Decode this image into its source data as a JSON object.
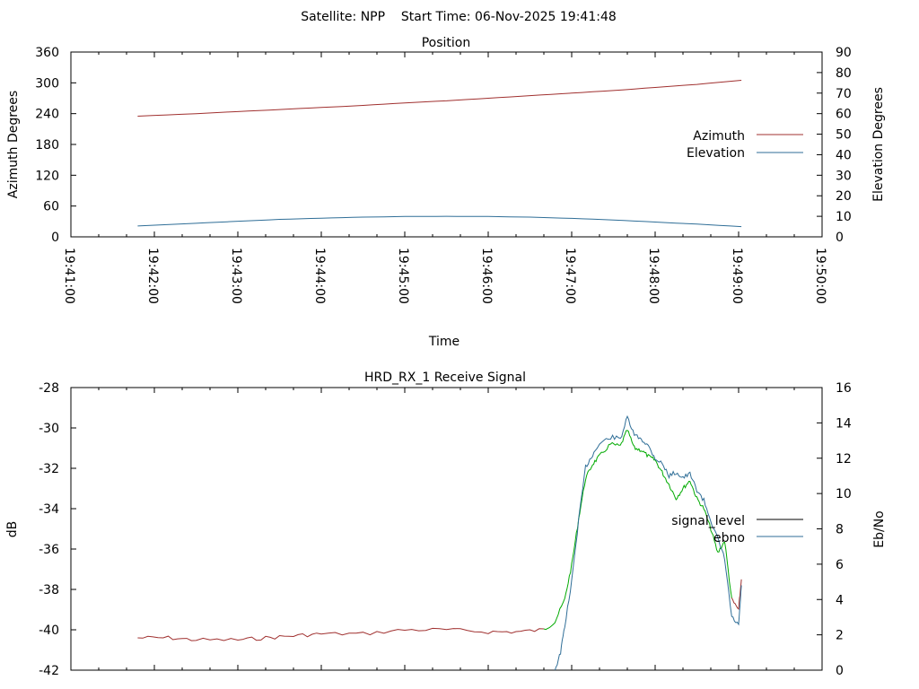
{
  "header": {
    "title": "Satellite: NPP    Start Time: 06-Nov-2025 19:41:48"
  },
  "chart_data": [
    {
      "type": "line",
      "title": "Position",
      "xlabel": "Time",
      "ylabel": "Azimuth Degrees",
      "y2label": "Elevation Degrees",
      "xlim": [
        "19:41:00",
        "19:50:00"
      ],
      "ylim": [
        0,
        360
      ],
      "y2lim": [
        0,
        90
      ],
      "x_ticks": [
        "19:41:00",
        "19:42:00",
        "19:43:00",
        "19:44:00",
        "19:45:00",
        "19:46:00",
        "19:47:00",
        "19:48:00",
        "19:49:00",
        "19:50:00"
      ],
      "y_ticks": [
        0,
        60,
        120,
        180,
        240,
        300,
        360
      ],
      "y2_ticks": [
        0,
        10,
        20,
        30,
        40,
        50,
        60,
        70,
        80,
        90
      ],
      "legend_position": "right",
      "grid": false,
      "series": [
        {
          "name": "Azimuth",
          "axis": "y",
          "color": "#a0302f",
          "x": [
            "19:41:48",
            "19:42:30",
            "19:43:00",
            "19:43:30",
            "19:44:00",
            "19:44:30",
            "19:45:00",
            "19:45:30",
            "19:46:00",
            "19:46:30",
            "19:47:00",
            "19:47:30",
            "19:48:00",
            "19:48:30",
            "19:49:02"
          ],
          "values": [
            235,
            240,
            244,
            248,
            252,
            256,
            261,
            265,
            270,
            275,
            280,
            285,
            291,
            297,
            305
          ]
        },
        {
          "name": "Elevation",
          "axis": "y2",
          "color": "#2f6e97",
          "x": [
            "19:41:48",
            "19:42:30",
            "19:43:00",
            "19:43:30",
            "19:44:00",
            "19:44:30",
            "19:45:00",
            "19:45:30",
            "19:46:00",
            "19:46:30",
            "19:47:00",
            "19:47:30",
            "19:48:00",
            "19:48:30",
            "19:49:02"
          ],
          "values": [
            5.3,
            6.6,
            7.6,
            8.5,
            9.1,
            9.6,
            9.9,
            10.0,
            9.9,
            9.6,
            9.0,
            8.2,
            7.2,
            6.2,
            5.0
          ]
        }
      ]
    },
    {
      "type": "line",
      "title": "HRD_RX_1 Receive Signal",
      "ylabel": "dB",
      "y2label": "Eb/No",
      "xlim": [
        "19:41:00",
        "19:50:00"
      ],
      "ylim": [
        -42,
        -28
      ],
      "y2lim": [
        0,
        16
      ],
      "y_ticks": [
        -42,
        -40,
        -38,
        -36,
        -34,
        -32,
        -30,
        -28
      ],
      "y2_ticks": [
        0,
        2,
        4,
        6,
        8,
        10,
        12,
        14,
        16
      ],
      "legend_position": "right",
      "grid": false,
      "series": [
        {
          "name": "signal_level",
          "axis": "y",
          "colors": [
            "#a0302f",
            "#00aa00",
            "#a0302f"
          ],
          "x": [
            "19:41:48",
            "19:42:10",
            "19:42:30",
            "19:43:00",
            "19:43:20",
            "19:43:40",
            "19:44:00",
            "19:44:30",
            "19:45:00",
            "19:45:30",
            "19:46:00",
            "19:46:20",
            "19:46:40",
            "19:46:48",
            "19:46:55",
            "19:47:00",
            "19:47:05",
            "19:47:10",
            "19:47:15",
            "19:47:20",
            "19:47:28",
            "19:47:35",
            "19:47:40",
            "19:47:45",
            "19:47:50",
            "19:47:55",
            "19:48:00",
            "19:48:05",
            "19:48:10",
            "19:48:15",
            "19:48:20",
            "19:48:25",
            "19:48:30",
            "19:48:35",
            "19:48:40",
            "19:48:45",
            "19:48:50",
            "19:48:55",
            "19:49:00",
            "19:49:02"
          ],
          "values": [
            -40.4,
            -40.4,
            -40.5,
            -40.5,
            -40.4,
            -40.3,
            -40.2,
            -40.2,
            -40.0,
            -40.0,
            -40.1,
            -40.1,
            -40.0,
            -39.6,
            -38.5,
            -36.8,
            -34.5,
            -32.5,
            -31.8,
            -31.4,
            -30.8,
            -30.9,
            -30.1,
            -31.0,
            -31.1,
            -31.4,
            -31.6,
            -32.2,
            -32.8,
            -33.5,
            -33.0,
            -32.6,
            -33.5,
            -34.0,
            -35.0,
            -36.2,
            -35.6,
            -38.5,
            -39.0,
            -37.5
          ]
        },
        {
          "name": "ebno",
          "axis": "y2",
          "color": "#2f6e97",
          "x": [
            "19:46:48",
            "19:46:52",
            "19:46:55",
            "19:47:00",
            "19:47:05",
            "19:47:10",
            "19:47:15",
            "19:47:20",
            "19:47:28",
            "19:47:35",
            "19:47:40",
            "19:47:45",
            "19:47:50",
            "19:47:55",
            "19:48:00",
            "19:48:05",
            "19:48:10",
            "19:48:15",
            "19:48:20",
            "19:48:25",
            "19:48:30",
            "19:48:35",
            "19:48:40",
            "19:48:45",
            "19:48:50",
            "19:48:55",
            "19:49:00",
            "19:49:02"
          ],
          "values": [
            0.0,
            1.0,
            2.5,
            5.0,
            8.5,
            11.5,
            12.2,
            12.8,
            13.2,
            13.1,
            14.3,
            13.3,
            13.1,
            12.7,
            12.0,
            11.7,
            11.0,
            11.2,
            10.9,
            11.1,
            10.2,
            9.6,
            8.5,
            7.4,
            6.3,
            3.0,
            2.5,
            4.8
          ]
        }
      ]
    }
  ]
}
